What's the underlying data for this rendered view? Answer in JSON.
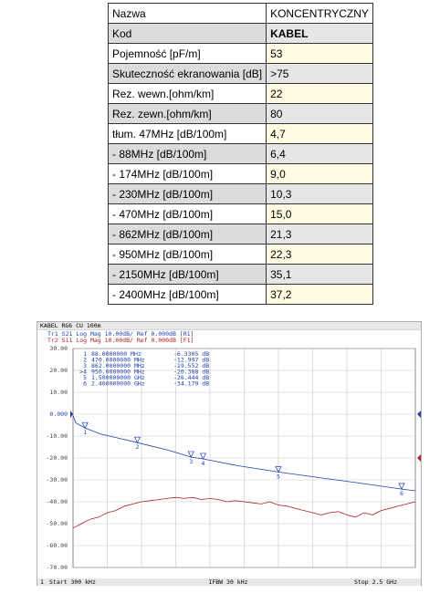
{
  "table": {
    "rows": [
      [
        "Nazwa",
        "KONCENTRYCZNY"
      ],
      [
        "Kod",
        "KABEL"
      ],
      [
        "Pojemność [pF/m]",
        "53"
      ],
      [
        "Skuteczność ekranowania [dB]",
        ">75"
      ],
      [
        "Rez. wewn.[ohm/km]",
        "22"
      ],
      [
        "Rez. zewn.[ohm/km]",
        "80"
      ],
      [
        "tłum. 47MHz [dB/100m]",
        "4,7"
      ],
      [
        "- 88MHz [dB/100m]",
        "6,4"
      ],
      [
        "- 174MHz [dB/100m]",
        "9,0"
      ],
      [
        "- 230MHz [dB/100m]",
        "10,3"
      ],
      [
        "- 470MHz [dB/100m]",
        "15,0"
      ],
      [
        "- 862MHz [dB/100m]",
        "21,3"
      ],
      [
        "- 950MHz [dB/100m]",
        "22,3"
      ],
      [
        "- 2150MHz [dB/100m]",
        "35,1"
      ],
      [
        "- 2400MHz [dB/100m]",
        "37,2"
      ]
    ]
  },
  "chart_data": {
    "type": "line",
    "title": "KABEL RG6 CU 100m",
    "channel": "1",
    "start_label": "Start 300 kHz",
    "ifbw_label": "IFBW 30 kHz",
    "stop_label": "Stop 2.5 GHz",
    "xlim": [
      0.3,
      2500
    ],
    "ylim": [
      -70,
      30
    ],
    "yticks": [
      {
        "value": 30,
        "label": "30.00"
      },
      {
        "value": 20,
        "label": "20.00"
      },
      {
        "value": 10,
        "label": "10.00"
      },
      {
        "value": 0,
        "label": "0.000"
      },
      {
        "value": -10,
        "label": "-10.00"
      },
      {
        "value": -20,
        "label": "-20.00"
      },
      {
        "value": -30,
        "label": "-30.00"
      },
      {
        "value": -40,
        "label": "-40.00"
      },
      {
        "value": -50,
        "label": "-50.00"
      },
      {
        "value": -60,
        "label": "-60.00"
      },
      {
        "value": -70,
        "label": "-70.00"
      }
    ],
    "grid": true,
    "series": [
      {
        "name": "Tr1 S21 Log Mag 10.00dB/ Ref 0.000dB [R1]",
        "color": "#1f3fb0",
        "x": [
          0.3,
          20,
          88,
          200,
          470,
          700,
          862,
          950,
          1200,
          1500,
          1800,
          2100,
          2400,
          2500
        ],
        "values": [
          -0.5,
          -4,
          -6.3,
          -9,
          -13,
          -16.5,
          -19.6,
          -20.4,
          -23.5,
          -26.4,
          -29,
          -31.5,
          -34.2,
          -35
        ]
      },
      {
        "name": "Tr2 S11 Log Mag 10.00dB/ Ref 0.000dB [F1]",
        "color": "#b02020",
        "x": [
          0.3,
          62.5,
          125,
          187.5,
          250,
          312.5,
          375,
          437.5,
          500,
          562.5,
          625,
          687.5,
          750,
          812.5,
          875,
          937.5,
          1000,
          1062.5,
          1125,
          1187.5,
          1250,
          1312.5,
          1375,
          1437.5,
          1500,
          1562.5,
          1625,
          1687.5,
          1750,
          1812.5,
          1875,
          1937.5,
          2000,
          2062.5,
          2125,
          2187.5,
          2250,
          2312.5,
          2375,
          2437.5,
          2500
        ],
        "values": [
          -52,
          -50,
          -48,
          -47,
          -45,
          -44,
          -42,
          -41,
          -40,
          -39.5,
          -39,
          -38.5,
          -38,
          -38.5,
          -38,
          -39,
          -38.5,
          -39,
          -40,
          -39.5,
          -40,
          -40.5,
          -41,
          -40,
          -41.5,
          -42,
          -43,
          -44,
          -45,
          -46,
          -45,
          -44.5,
          -46,
          -47,
          -45,
          -46,
          -44,
          -43,
          -42,
          -41,
          -40
        ]
      }
    ],
    "markers": [
      {
        "name": "1",
        "list_label": "1",
        "x": 88,
        "y": -6.3305,
        "x_label": "88.0000000 MHz",
        "y_label": "-6.3305 dB"
      },
      {
        "name": "2",
        "list_label": "2",
        "x": 470,
        "y": -12.997,
        "x_label": "470.0000000 MHz",
        "y_label": "-12.997 dB"
      },
      {
        "name": "3",
        "list_label": "3",
        "x": 862,
        "y": -19.552,
        "x_label": "862.0000000 MHz",
        "y_label": "-19.552 dB"
      },
      {
        "name": "4",
        "list_label": ">4",
        "x": 950,
        "y": -20.388,
        "x_label": "950.0000000 MHz",
        "y_label": "-20.388 dB"
      },
      {
        "name": "5",
        "list_label": "5",
        "x": 1500,
        "y": -26.444,
        "x_label": "1.500000000 GHz",
        "y_label": "-26.444 dB"
      },
      {
        "name": "6",
        "list_label": "6",
        "x": 2400,
        "y": -34.179,
        "x_label": "2.400000000 GHz",
        "y_label": "-34.179 dB"
      }
    ]
  }
}
